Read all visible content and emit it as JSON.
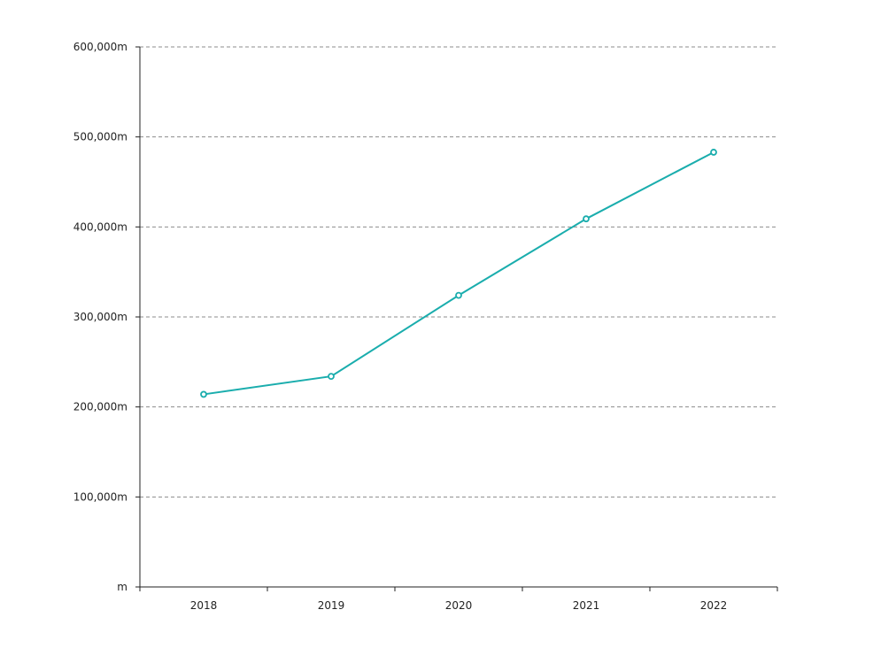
{
  "chart_data": {
    "type": "line",
    "title": "",
    "xlabel": "",
    "ylabel": "",
    "categories": [
      "2018",
      "2019",
      "2020",
      "2021",
      "2022"
    ],
    "series": [
      {
        "values": [
          214000,
          234000,
          324000,
          409000,
          483000
        ],
        "color": "#1aadad"
      }
    ],
    "ylim": [
      0,
      600000
    ],
    "yticks": [
      0,
      100000,
      200000,
      300000,
      400000,
      500000,
      600000
    ],
    "ytick_labels": [
      "m",
      "100,000m",
      "200,000m",
      "300,000m",
      "400,000m",
      "500,000m",
      "600,000m"
    ],
    "grid": "horizontal-dashed",
    "legend": "none"
  }
}
